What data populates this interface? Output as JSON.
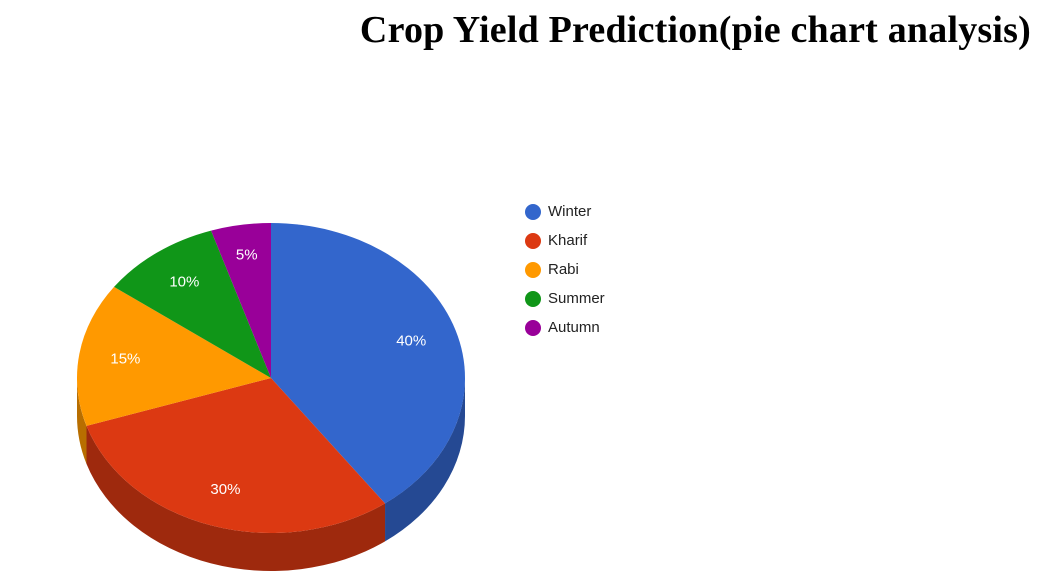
{
  "page": {
    "title": "Crop Yield Prediction(pie chart analysis)"
  },
  "chart_data": {
    "type": "pie",
    "is3D": true,
    "title": "",
    "categories": [
      "Winter",
      "Kharif",
      "Rabi",
      "Summer",
      "Autumn"
    ],
    "values": [
      40,
      30,
      15,
      10,
      5
    ],
    "labels": [
      "40%",
      "30%",
      "15%",
      "10%",
      "5%"
    ],
    "colors": [
      "#3366cc",
      "#dc3912",
      "#ff9900",
      "#109618",
      "#990099"
    ],
    "legend": {
      "position": "right",
      "entries": [
        "Winter",
        "Kharif",
        "Rabi",
        "Summer",
        "Autumn"
      ]
    }
  }
}
